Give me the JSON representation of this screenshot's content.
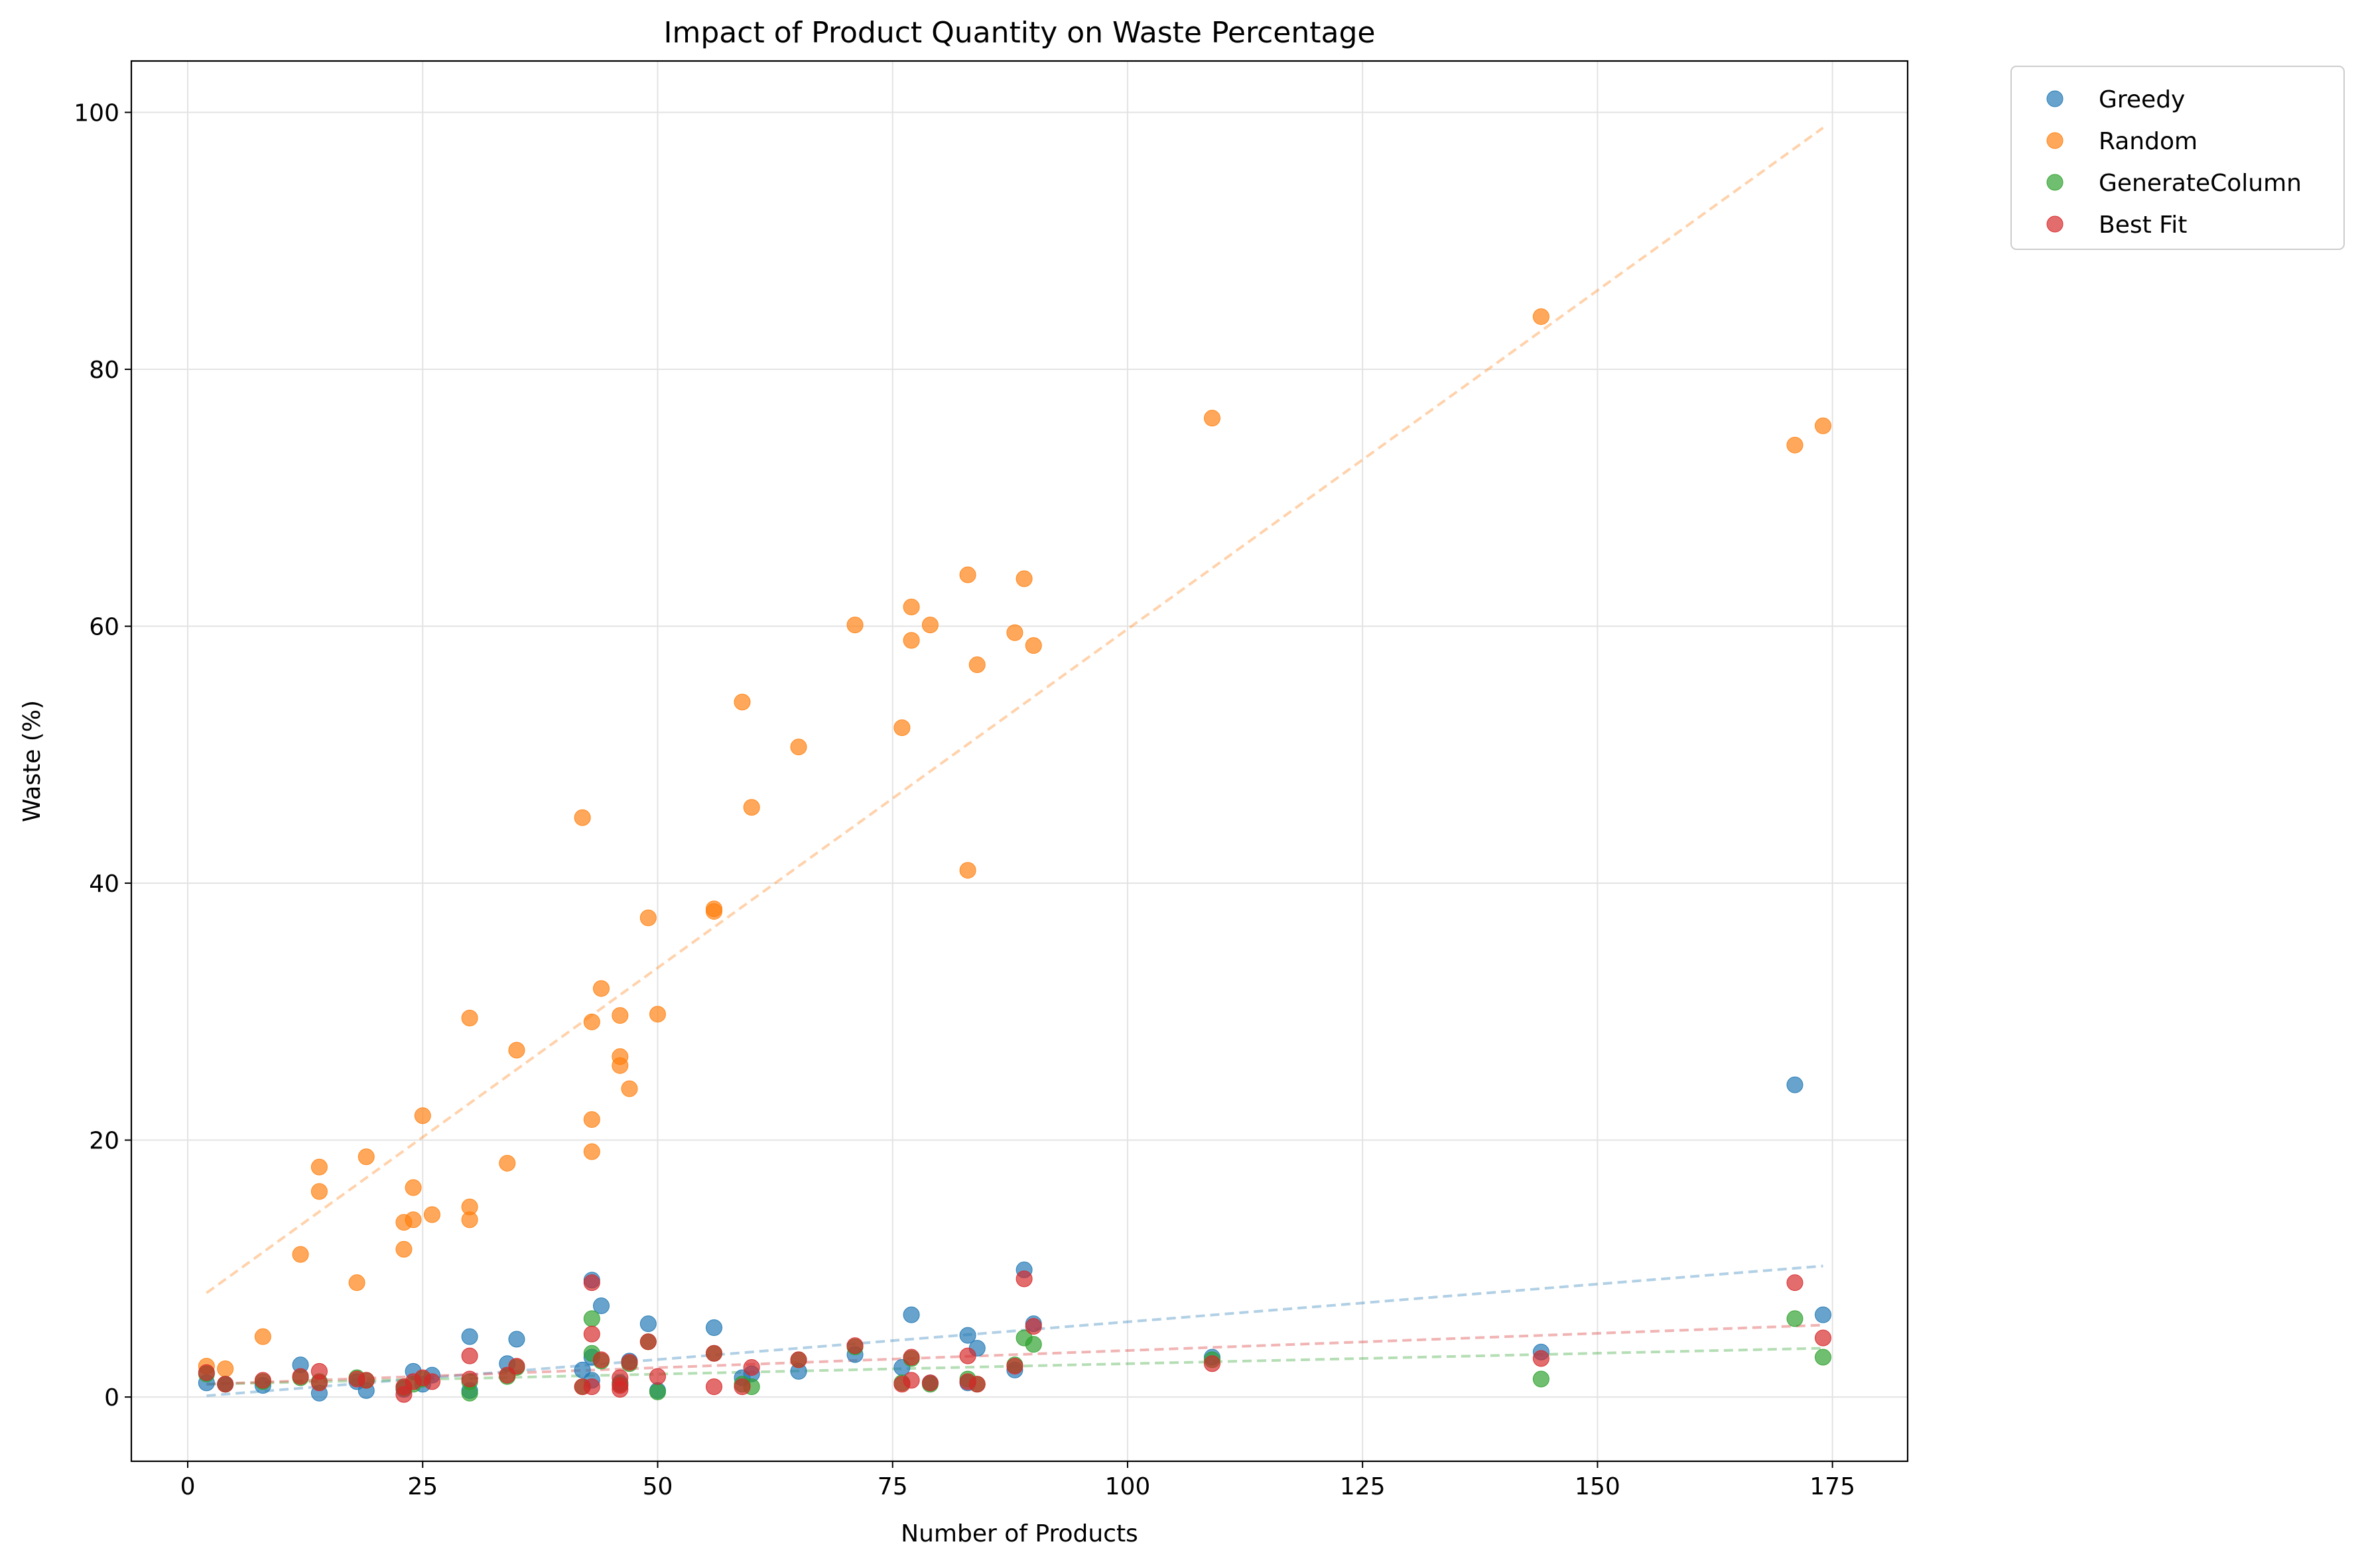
{
  "chart_data": {
    "type": "scatter",
    "title": "Impact of Product Quantity on Waste Percentage",
    "xlabel": "Number of Products",
    "ylabel": "Waste (%)",
    "xlim": [
      -6,
      183
    ],
    "ylim": [
      -5,
      104
    ],
    "xticks": [
      0,
      25,
      50,
      75,
      100,
      125,
      150,
      175
    ],
    "yticks": [
      0,
      20,
      40,
      60,
      80,
      100
    ],
    "grid": true,
    "legend_position": "outside-top-right",
    "series": [
      {
        "name": "Greedy",
        "color": "#1f77b4",
        "trend": {
          "x0": 2,
          "y0": 0.1,
          "x1": 174,
          "y1": 10.2
        },
        "points": [
          [
            2,
            1.1
          ],
          [
            4,
            1.0
          ],
          [
            8,
            0.9
          ],
          [
            12,
            2.5
          ],
          [
            14,
            0.3
          ],
          [
            18,
            1.2
          ],
          [
            19,
            0.5
          ],
          [
            23,
            0.6
          ],
          [
            24,
            2.0
          ],
          [
            25,
            1.0
          ],
          [
            26,
            1.7
          ],
          [
            30,
            4.7
          ],
          [
            30,
            0.5
          ],
          [
            34,
            2.6
          ],
          [
            35,
            4.5
          ],
          [
            42,
            2.1
          ],
          [
            43,
            9.1
          ],
          [
            43,
            3.1
          ],
          [
            43,
            1.3
          ],
          [
            44,
            7.1
          ],
          [
            46,
            1.1
          ],
          [
            47,
            2.8
          ],
          [
            49,
            5.7
          ],
          [
            50,
            0.5
          ],
          [
            56,
            5.4
          ],
          [
            59,
            1.5
          ],
          [
            60,
            1.8
          ],
          [
            65,
            2.0
          ],
          [
            71,
            3.3
          ],
          [
            76,
            2.3
          ],
          [
            77,
            6.4
          ],
          [
            79,
            1.1
          ],
          [
            83,
            4.8
          ],
          [
            83,
            1.1
          ],
          [
            84,
            3.8
          ],
          [
            88,
            2.1
          ],
          [
            89,
            9.9
          ],
          [
            90,
            5.7
          ],
          [
            109,
            3.1
          ],
          [
            144,
            3.5
          ],
          [
            171,
            24.3
          ],
          [
            174,
            6.4
          ]
        ]
      },
      {
        "name": "Random",
        "color": "#ff7f0e",
        "trend": {
          "x0": 2,
          "y0": 8.1,
          "x1": 174,
          "y1": 98.8
        },
        "points": [
          [
            2,
            2.4
          ],
          [
            4,
            2.2
          ],
          [
            8,
            4.7
          ],
          [
            12,
            11.1
          ],
          [
            14,
            17.9
          ],
          [
            14,
            16.0
          ],
          [
            18,
            8.9
          ],
          [
            19,
            18.7
          ],
          [
            23,
            13.6
          ],
          [
            23,
            11.5
          ],
          [
            24,
            16.3
          ],
          [
            24,
            13.8
          ],
          [
            25,
            21.9
          ],
          [
            26,
            14.2
          ],
          [
            30,
            29.5
          ],
          [
            30,
            14.8
          ],
          [
            30,
            13.8
          ],
          [
            34,
            18.2
          ],
          [
            35,
            27.0
          ],
          [
            42,
            45.1
          ],
          [
            43,
            29.2
          ],
          [
            43,
            21.6
          ],
          [
            43,
            19.1
          ],
          [
            44,
            31.8
          ],
          [
            46,
            29.7
          ],
          [
            46,
            26.5
          ],
          [
            46,
            25.8
          ],
          [
            47,
            24.0
          ],
          [
            49,
            37.3
          ],
          [
            50,
            29.8
          ],
          [
            56,
            38.0
          ],
          [
            56,
            37.8
          ],
          [
            59,
            54.1
          ],
          [
            60,
            45.9
          ],
          [
            65,
            50.6
          ],
          [
            71,
            60.1
          ],
          [
            76,
            52.1
          ],
          [
            77,
            61.5
          ],
          [
            77,
            58.9
          ],
          [
            79,
            60.1
          ],
          [
            83,
            64.0
          ],
          [
            83,
            41.0
          ],
          [
            84,
            57.0
          ],
          [
            88,
            59.5
          ],
          [
            89,
            63.7
          ],
          [
            90,
            58.5
          ],
          [
            109,
            76.2
          ],
          [
            144,
            84.1
          ],
          [
            171,
            74.1
          ],
          [
            174,
            75.6
          ]
        ]
      },
      {
        "name": "GenerateColumn",
        "color": "#2ca02c",
        "trend": {
          "x0": 2,
          "y0": 1.0,
          "x1": 174,
          "y1": 3.8
        },
        "points": [
          [
            2,
            1.8
          ],
          [
            4,
            1.0
          ],
          [
            8,
            1.2
          ],
          [
            12,
            1.5
          ],
          [
            14,
            1.2
          ],
          [
            18,
            1.5
          ],
          [
            19,
            1.3
          ],
          [
            23,
            0.7
          ],
          [
            24,
            1.0
          ],
          [
            25,
            1.4
          ],
          [
            30,
            0.3
          ],
          [
            30,
            1.2
          ],
          [
            34,
            1.6
          ],
          [
            35,
            2.3
          ],
          [
            42,
            0.8
          ],
          [
            43,
            6.1
          ],
          [
            43,
            3.4
          ],
          [
            44,
            2.8
          ],
          [
            46,
            1.0
          ],
          [
            47,
            2.6
          ],
          [
            49,
            4.3
          ],
          [
            50,
            0.4
          ],
          [
            56,
            3.4
          ],
          [
            59,
            1.0
          ],
          [
            60,
            0.8
          ],
          [
            65,
            2.9
          ],
          [
            71,
            3.9
          ],
          [
            76,
            1.1
          ],
          [
            77,
            3.0
          ],
          [
            79,
            1.0
          ],
          [
            83,
            1.4
          ],
          [
            84,
            1.0
          ],
          [
            88,
            2.5
          ],
          [
            89,
            4.6
          ],
          [
            90,
            4.1
          ],
          [
            109,
            2.9
          ],
          [
            144,
            1.4
          ],
          [
            171,
            6.1
          ],
          [
            174,
            3.1
          ]
        ]
      },
      {
        "name": "Best Fit",
        "color": "#d62728",
        "trend": {
          "x0": 2,
          "y0": 1.0,
          "x1": 174,
          "y1": 5.6
        },
        "points": [
          [
            2,
            1.9
          ],
          [
            4,
            1.0
          ],
          [
            8,
            1.3
          ],
          [
            12,
            1.6
          ],
          [
            14,
            2.0
          ],
          [
            14,
            1.1
          ],
          [
            18,
            1.4
          ],
          [
            19,
            1.3
          ],
          [
            23,
            0.2
          ],
          [
            23,
            0.8
          ],
          [
            24,
            1.2
          ],
          [
            25,
            1.5
          ],
          [
            26,
            1.2
          ],
          [
            30,
            3.2
          ],
          [
            30,
            1.4
          ],
          [
            34,
            1.7
          ],
          [
            35,
            2.4
          ],
          [
            42,
            0.8
          ],
          [
            43,
            8.9
          ],
          [
            43,
            4.9
          ],
          [
            43,
            0.8
          ],
          [
            44,
            2.9
          ],
          [
            46,
            1.5
          ],
          [
            46,
            0.9
          ],
          [
            46,
            0.6
          ],
          [
            47,
            2.7
          ],
          [
            49,
            4.3
          ],
          [
            50,
            1.6
          ],
          [
            56,
            3.4
          ],
          [
            56,
            0.8
          ],
          [
            59,
            0.8
          ],
          [
            60,
            2.3
          ],
          [
            65,
            2.9
          ],
          [
            71,
            4.0
          ],
          [
            76,
            1.0
          ],
          [
            77,
            3.1
          ],
          [
            77,
            1.3
          ],
          [
            79,
            1.1
          ],
          [
            83,
            3.2
          ],
          [
            83,
            1.2
          ],
          [
            84,
            1.0
          ],
          [
            88,
            2.4
          ],
          [
            89,
            9.2
          ],
          [
            90,
            5.5
          ],
          [
            109,
            2.6
          ],
          [
            144,
            3.0
          ],
          [
            171,
            8.9
          ],
          [
            174,
            4.6
          ]
        ]
      }
    ]
  }
}
